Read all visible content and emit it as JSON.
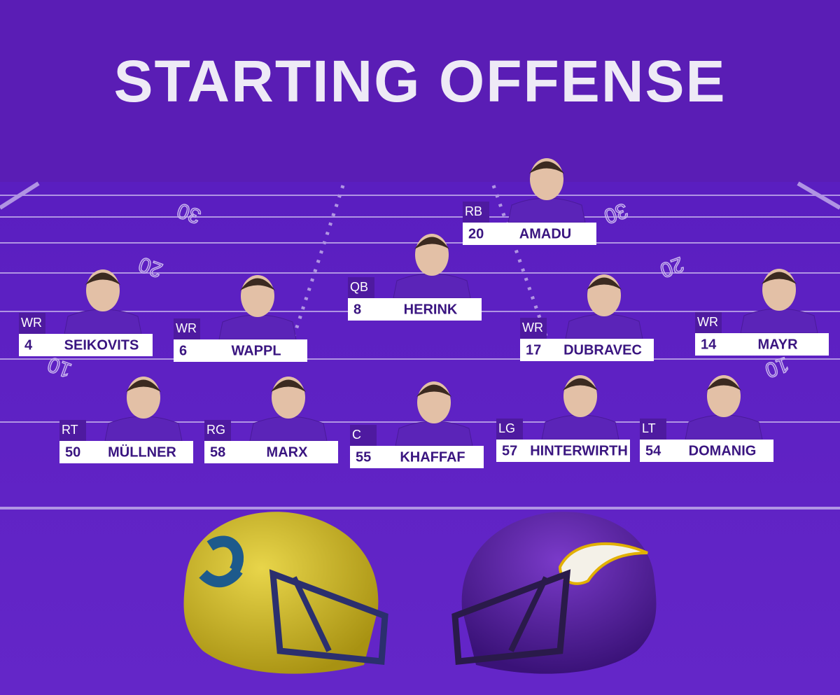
{
  "header": {
    "title": "STARTING OFFENSE"
  },
  "field": {
    "yard_numbers": [
      "30",
      "20",
      "10"
    ]
  },
  "players": [
    {
      "position": "RB",
      "number": "20",
      "name": "AMADU"
    },
    {
      "position": "QB",
      "number": "8",
      "name": "HERINK"
    },
    {
      "position": "WR",
      "number": "4",
      "name": "SEIKOVITS"
    },
    {
      "position": "WR",
      "number": "6",
      "name": "WAPPL"
    },
    {
      "position": "WR",
      "number": "17",
      "name": "DUBRAVEC"
    },
    {
      "position": "WR",
      "number": "14",
      "name": "MAYR"
    },
    {
      "position": "RT",
      "number": "50",
      "name": "MÜLLNER"
    },
    {
      "position": "RG",
      "number": "58",
      "name": "MARX"
    },
    {
      "position": "C",
      "number": "55",
      "name": "KHAFFAF"
    },
    {
      "position": "LG",
      "number": "57",
      "name": "HINTERWIRTH"
    },
    {
      "position": "LT",
      "number": "54",
      "name": "DOMANIG"
    }
  ]
}
